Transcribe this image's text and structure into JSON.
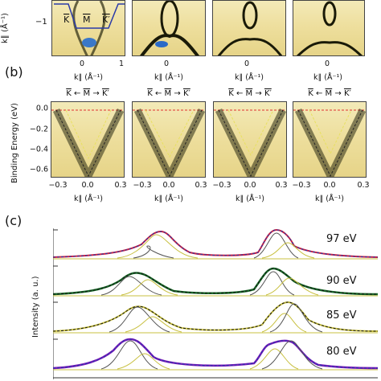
{
  "panel_a": {
    "ylabel": "k∥ (Å⁻¹)",
    "ytick": "−1",
    "xlabel": "k∥ (Å⁻¹)",
    "xticks": [
      "0",
      "1",
      "0",
      "0",
      "0"
    ],
    "inset_points": [
      "K",
      "M",
      "K′"
    ]
  },
  "panel_b": {
    "letter": "(b)",
    "ylabel": "Binding Energy (eV)",
    "yticks": [
      "0.0",
      "−0.2",
      "−0.4",
      "−0.6"
    ],
    "xlabel": "k∥ (Å⁻¹)",
    "xticks": [
      "−0.3",
      "0.0",
      "0.3"
    ],
    "header": {
      "left": "K",
      "mid": "M",
      "right": "K′",
      "arrow": "←",
      "arrow2": "→"
    },
    "line_colors": {
      "fermi": "#e03030",
      "yellow": "#e8e060",
      "black": "#222222"
    }
  },
  "panel_c": {
    "letter": "(c)",
    "ylabel": "Intensity (a. u.)",
    "energies": [
      "97 eV",
      "90 eV",
      "85 eV",
      "80 eV"
    ],
    "colors": [
      "#d02040",
      "#1a6a2a",
      "#c8c040",
      "#7a1ab8"
    ]
  }
}
